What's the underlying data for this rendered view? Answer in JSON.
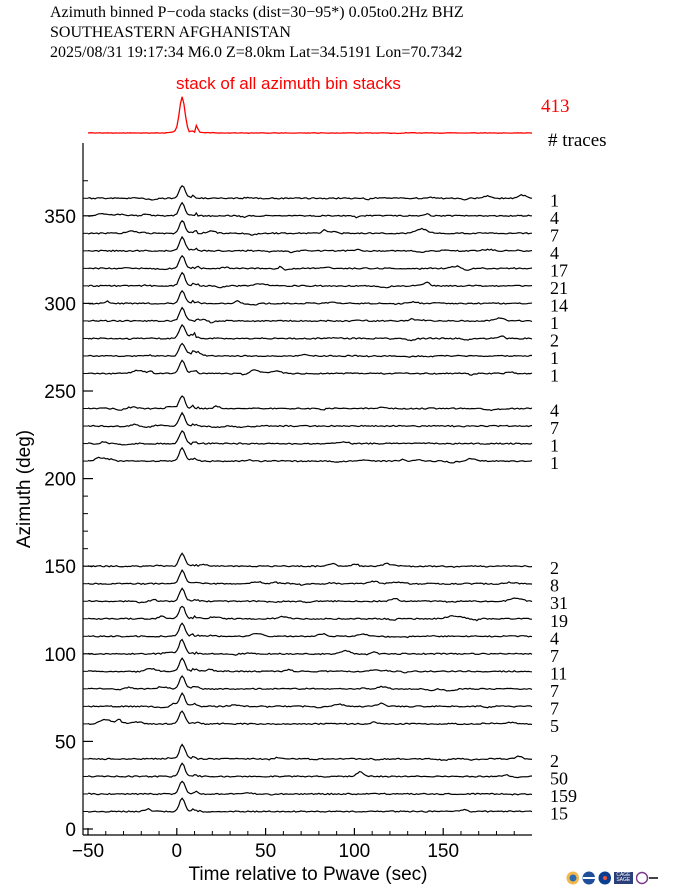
{
  "header": {
    "line1": "Azimuth binned P−coda stacks (dist=30−95*)  0.05to0.2Hz  BHZ",
    "line2": "SOUTHEASTERN AFGHANISTAN",
    "line3": "2025/08/31   19:17:34   M6.0   Z=8.0km  Lat=34.5191  Lon=70.7342"
  },
  "stack": {
    "label": "stack of all azimuth bin stacks",
    "count": "413",
    "traces_label": "# traces",
    "color": "#ff0000"
  },
  "logos": [
    "iris-logo",
    "nsf-logo",
    "cage-sage-logo",
    "earthscope-logo"
  ],
  "logo_text": {
    "cage": "CAGE",
    "sage": "SAGE"
  },
  "chart_data": {
    "type": "line",
    "xlabel": "Time relative to Pwave (sec)",
    "ylabel": "Azimuth (deg)",
    "xlim": [
      -50,
      200
    ],
    "ylim": [
      0,
      380
    ],
    "xticks": [
      -50,
      0,
      50,
      100,
      150
    ],
    "xtick_labels": [
      "−50",
      "0",
      "50",
      "100",
      "150"
    ],
    "yticks": [
      0,
      50,
      100,
      150,
      200,
      250,
      300,
      350
    ],
    "yticks_minor": [
      10,
      20,
      30,
      40,
      60,
      70,
      80,
      90,
      110,
      120,
      130,
      140,
      160,
      170,
      180,
      190,
      210,
      220,
      230,
      240,
      260,
      270,
      280,
      290,
      310,
      320,
      330,
      340,
      360,
      370
    ],
    "trace_color": "#000000",
    "traces": [
      {
        "azimuth": 360,
        "count": "1"
      },
      {
        "azimuth": 350,
        "count": "4"
      },
      {
        "azimuth": 340,
        "count": "7"
      },
      {
        "azimuth": 330,
        "count": "4"
      },
      {
        "azimuth": 320,
        "count": "17"
      },
      {
        "azimuth": 310,
        "count": "21"
      },
      {
        "azimuth": 300,
        "count": "14"
      },
      {
        "azimuth": 290,
        "count": "1"
      },
      {
        "azimuth": 280,
        "count": "2"
      },
      {
        "azimuth": 270,
        "count": "1"
      },
      {
        "azimuth": 260,
        "count": "1"
      },
      {
        "azimuth": 240,
        "count": "4"
      },
      {
        "azimuth": 230,
        "count": "7"
      },
      {
        "azimuth": 220,
        "count": "1"
      },
      {
        "azimuth": 210,
        "count": "1"
      },
      {
        "azimuth": 150,
        "count": "2"
      },
      {
        "azimuth": 140,
        "count": "8"
      },
      {
        "azimuth": 130,
        "count": "31"
      },
      {
        "azimuth": 120,
        "count": "19"
      },
      {
        "azimuth": 110,
        "count": "4"
      },
      {
        "azimuth": 100,
        "count": "7"
      },
      {
        "azimuth": 90,
        "count": "11"
      },
      {
        "azimuth": 80,
        "count": "7"
      },
      {
        "azimuth": 70,
        "count": "7"
      },
      {
        "azimuth": 60,
        "count": "5"
      },
      {
        "azimuth": 40,
        "count": "2"
      },
      {
        "azimuth": 30,
        "count": "50"
      },
      {
        "azimuth": 20,
        "count": "159"
      },
      {
        "azimuth": 10,
        "count": "15"
      }
    ]
  }
}
